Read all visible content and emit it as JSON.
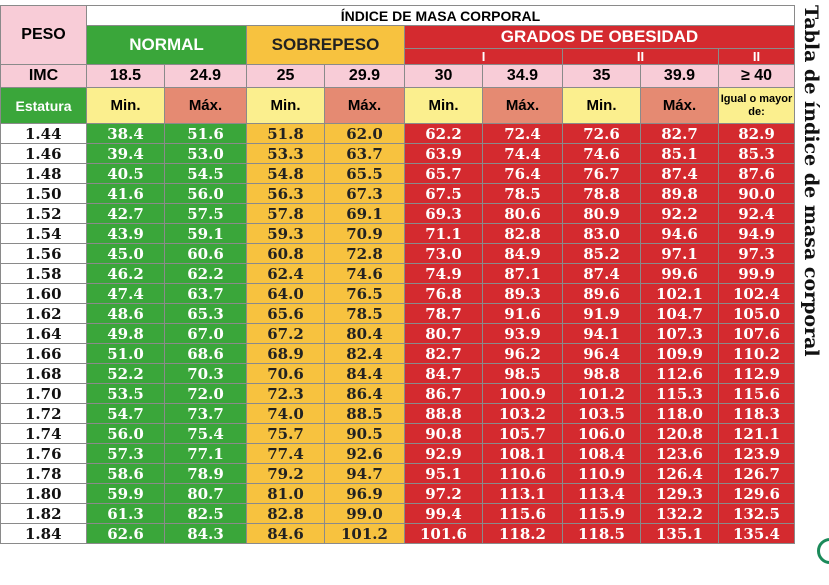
{
  "header": {
    "title": "ÍNDICE DE MASA CORPORAL",
    "peso": "PESO",
    "normal": "NORMAL",
    "sobrepeso": "SOBREPESO",
    "grados": "GRADOS DE OBESIDAD",
    "grade_i": "I",
    "grade_ii": "II",
    "grade_ii_b": "II"
  },
  "imc": {
    "label": "IMC",
    "values": [
      "18.5",
      "24.9",
      "25",
      "29.9",
      "30",
      "34.9",
      "35",
      "39.9",
      "≥ 40"
    ]
  },
  "subheader": {
    "estatura": "Estatura",
    "labels": [
      "Min.",
      "Máx.",
      "Min.",
      "Máx.",
      "Min.",
      "Máx.",
      "Min.",
      "Máx.",
      "Igual o mayor de:"
    ]
  },
  "side_title": "Tabla de índice de masa corporal",
  "rows": [
    {
      "h": "1.44",
      "v": [
        "38.4",
        "51.6",
        "51.8",
        "62.0",
        "62.2",
        "72.4",
        "72.6",
        "82.7",
        "82.9"
      ]
    },
    {
      "h": "1.46",
      "v": [
        "39.4",
        "53.0",
        "53.3",
        "63.7",
        "63.9",
        "74.4",
        "74.6",
        "85.1",
        "85.3"
      ]
    },
    {
      "h": "1.48",
      "v": [
        "40.5",
        "54.5",
        "54.8",
        "65.5",
        "65.7",
        "76.4",
        "76.7",
        "87.4",
        "87.6"
      ]
    },
    {
      "h": "1.50",
      "v": [
        "41.6",
        "56.0",
        "56.3",
        "67.3",
        "67.5",
        "78.5",
        "78.8",
        "89.8",
        "90.0"
      ]
    },
    {
      "h": "1.52",
      "v": [
        "42.7",
        "57.5",
        "57.8",
        "69.1",
        "69.3",
        "80.6",
        "80.9",
        "92.2",
        "92.4"
      ]
    },
    {
      "h": "1.54",
      "v": [
        "43.9",
        "59.1",
        "59.3",
        "70.9",
        "71.1",
        "82.8",
        "83.0",
        "94.6",
        "94.9"
      ]
    },
    {
      "h": "1.56",
      "v": [
        "45.0",
        "60.6",
        "60.8",
        "72.8",
        "73.0",
        "84.9",
        "85.2",
        "97.1",
        "97.3"
      ]
    },
    {
      "h": "1.58",
      "v": [
        "46.2",
        "62.2",
        "62.4",
        "74.6",
        "74.9",
        "87.1",
        "87.4",
        "99.6",
        "99.9"
      ]
    },
    {
      "h": "1.60",
      "v": [
        "47.4",
        "63.7",
        "64.0",
        "76.5",
        "76.8",
        "89.3",
        "89.6",
        "102.1",
        "102.4"
      ]
    },
    {
      "h": "1.62",
      "v": [
        "48.6",
        "65.3",
        "65.6",
        "78.5",
        "78.7",
        "91.6",
        "91.9",
        "104.7",
        "105.0"
      ]
    },
    {
      "h": "1.64",
      "v": [
        "49.8",
        "67.0",
        "67.2",
        "80.4",
        "80.7",
        "93.9",
        "94.1",
        "107.3",
        "107.6"
      ]
    },
    {
      "h": "1.66",
      "v": [
        "51.0",
        "68.6",
        "68.9",
        "82.4",
        "82.7",
        "96.2",
        "96.4",
        "109.9",
        "110.2"
      ]
    },
    {
      "h": "1.68",
      "v": [
        "52.2",
        "70.3",
        "70.6",
        "84.4",
        "84.7",
        "98.5",
        "98.8",
        "112.6",
        "112.9"
      ]
    },
    {
      "h": "1.70",
      "v": [
        "53.5",
        "72.0",
        "72.3",
        "86.4",
        "86.7",
        "100.9",
        "101.2",
        "115.3",
        "115.6"
      ]
    },
    {
      "h": "1.72",
      "v": [
        "54.7",
        "73.7",
        "74.0",
        "88.5",
        "88.8",
        "103.2",
        "103.5",
        "118.0",
        "118.3"
      ]
    },
    {
      "h": "1.74",
      "v": [
        "56.0",
        "75.4",
        "75.7",
        "90.5",
        "90.8",
        "105.7",
        "106.0",
        "120.8",
        "121.1"
      ]
    },
    {
      "h": "1.76",
      "v": [
        "57.3",
        "77.1",
        "77.4",
        "92.6",
        "92.9",
        "108.1",
        "108.4",
        "123.6",
        "123.9"
      ]
    },
    {
      "h": "1.78",
      "v": [
        "58.6",
        "78.9",
        "79.2",
        "94.7",
        "95.1",
        "110.6",
        "110.9",
        "126.4",
        "126.7"
      ]
    },
    {
      "h": "1.80",
      "v": [
        "59.9",
        "80.7",
        "81.0",
        "96.9",
        "97.2",
        "113.1",
        "113.4",
        "129.3",
        "129.6"
      ]
    },
    {
      "h": "1.82",
      "v": [
        "61.3",
        "82.5",
        "82.8",
        "99.0",
        "99.4",
        "115.6",
        "115.9",
        "132.2",
        "132.5"
      ]
    },
    {
      "h": "1.84",
      "v": [
        "62.6",
        "84.3",
        "84.6",
        "101.2",
        "101.6",
        "118.2",
        "118.5",
        "135.1",
        "135.4"
      ]
    }
  ],
  "colors": {
    "normal": "#3aa63a",
    "sobrepeso": "#f7c23f",
    "obesidad": "#d42a2f",
    "min_header": "#fbef8e",
    "max_header": "#e58a72",
    "imc_row": "#f8ccd7"
  }
}
